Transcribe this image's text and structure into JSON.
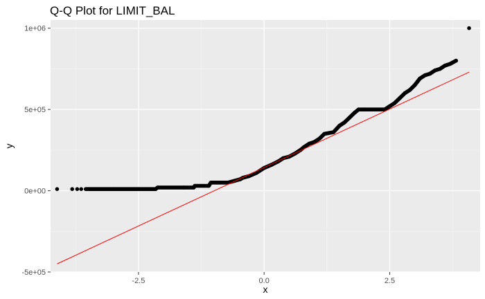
{
  "chart_data": {
    "type": "scatter",
    "title": "Q-Q Plot for LIMIT_BAL",
    "xlabel": "x",
    "ylabel": "y",
    "xlim": [
      -4.25,
      4.3
    ],
    "ylim": [
      -500000,
      1050000
    ],
    "x_ticks": [
      -2.5,
      0.0,
      2.5
    ],
    "x_tick_labels": [
      "-2.5",
      "0.0",
      "2.5"
    ],
    "y_ticks": [
      -500000,
      0,
      500000,
      1000000
    ],
    "y_tick_labels": [
      "-5e+05",
      "0e+00",
      "5e+05",
      "1e+06"
    ],
    "grid": true,
    "background_color": "#ebebeb",
    "point_color": "#000000",
    "reference_line_color": "#ff0000",
    "series": [
      {
        "type": "scatter",
        "points": [
          [
            -4.12,
            10000
          ],
          [
            -3.82,
            10000
          ],
          [
            -3.72,
            10000
          ],
          [
            -3.64,
            10000
          ],
          [
            -3.55,
            10000
          ],
          [
            -3.0,
            10000
          ],
          [
            -2.5,
            10000
          ],
          [
            -2.16,
            10000
          ],
          [
            -2.12,
            20000
          ],
          [
            -1.6,
            20000
          ],
          [
            -1.4,
            20000
          ],
          [
            -1.38,
            30000
          ],
          [
            -1.1,
            30000
          ],
          [
            -1.06,
            50000
          ],
          [
            -0.72,
            50000
          ],
          [
            -0.6,
            60000
          ],
          [
            -0.48,
            70000
          ],
          [
            -0.42,
            80000
          ],
          [
            -0.3,
            90000
          ],
          [
            -0.15,
            110000
          ],
          [
            0.0,
            140000
          ],
          [
            0.15,
            160000
          ],
          [
            0.28,
            180000
          ],
          [
            0.38,
            200000
          ],
          [
            0.5,
            210000
          ],
          [
            0.62,
            230000
          ],
          [
            0.72,
            250000
          ],
          [
            0.8,
            270000
          ],
          [
            0.9,
            290000
          ],
          [
            1.0,
            300000
          ],
          [
            1.1,
            320000
          ],
          [
            1.2,
            350000
          ],
          [
            1.38,
            360000
          ],
          [
            1.5,
            400000
          ],
          [
            1.6,
            420000
          ],
          [
            1.7,
            450000
          ],
          [
            1.8,
            480000
          ],
          [
            1.88,
            500000
          ],
          [
            2.0,
            500000
          ],
          [
            2.4,
            500000
          ],
          [
            2.5,
            520000
          ],
          [
            2.6,
            540000
          ],
          [
            2.7,
            570000
          ],
          [
            2.8,
            600000
          ],
          [
            2.9,
            620000
          ],
          [
            3.0,
            650000
          ],
          [
            3.1,
            690000
          ],
          [
            3.2,
            710000
          ],
          [
            3.3,
            720000
          ],
          [
            3.4,
            740000
          ],
          [
            3.5,
            750000
          ],
          [
            3.6,
            770000
          ],
          [
            3.7,
            780000
          ],
          [
            3.82,
            800000
          ],
          [
            4.08,
            1000000
          ]
        ]
      },
      {
        "type": "line",
        "points": [
          [
            -4.12,
            -450000
          ],
          [
            4.08,
            730000
          ]
        ]
      }
    ]
  }
}
